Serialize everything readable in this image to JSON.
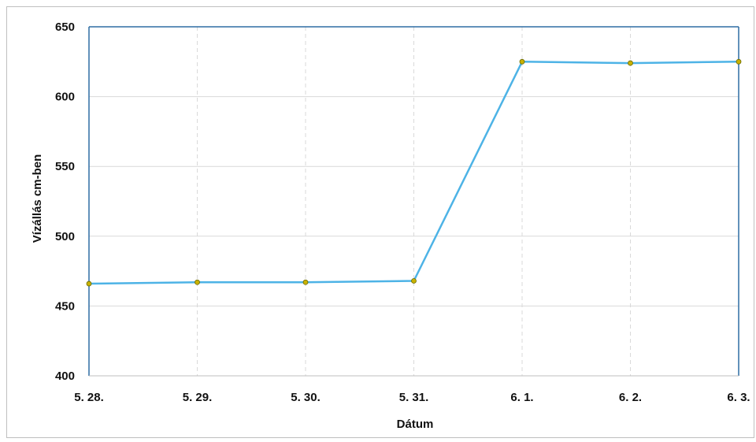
{
  "chart_data": {
    "type": "line",
    "title": "",
    "xlabel": "Dátum",
    "ylabel": "Vízállás cm-ben",
    "categories": [
      "5. 28.",
      "5. 29.",
      "5. 30.",
      "5. 31.",
      "6. 1.",
      "6. 2.",
      "6. 3."
    ],
    "series": [
      {
        "values": [
          466,
          467,
          467,
          468,
          625,
          624,
          625
        ]
      }
    ],
    "ylim": [
      400,
      650
    ],
    "yticks": [
      400,
      450,
      500,
      550,
      600,
      650
    ],
    "grid": {
      "horizontal": true,
      "vertical": "dashed"
    },
    "colors": {
      "line": "#4db3e6",
      "marker": "#c9b200",
      "marker_edge": "#6a6a00",
      "grid": "#d9d9d9",
      "axis": "#2e6da4"
    }
  }
}
